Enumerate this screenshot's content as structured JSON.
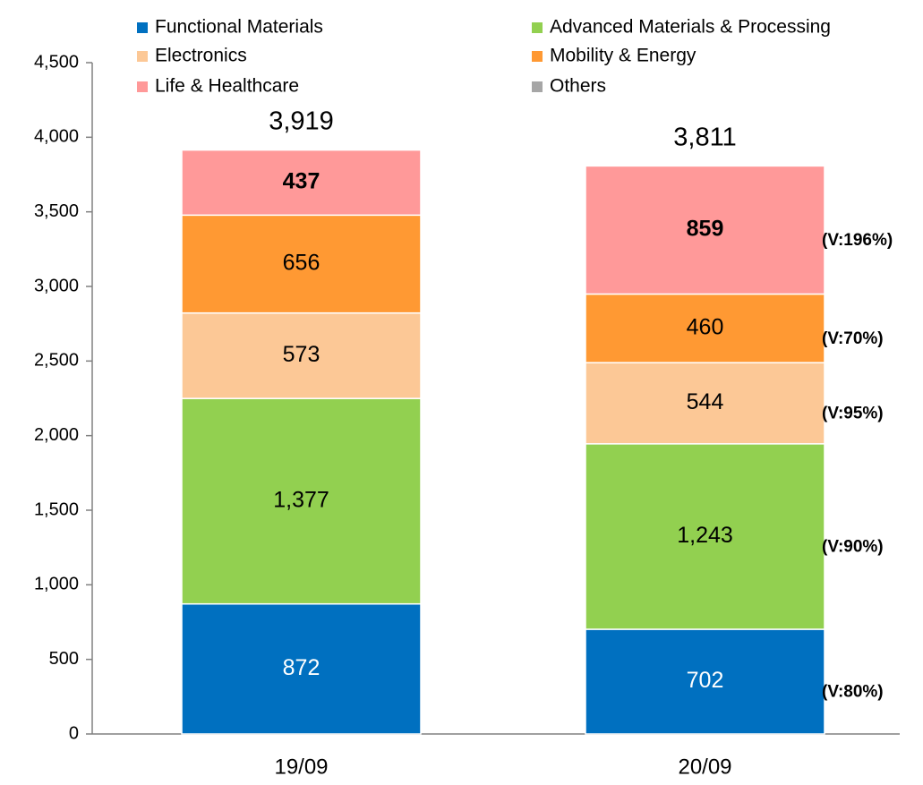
{
  "chart_data": {
    "type": "stacked_bar",
    "categories": [
      "19/09",
      "20/09"
    ],
    "series": [
      {
        "name": "Functional Materials",
        "color": "#0070c0",
        "values": [
          872,
          702
        ]
      },
      {
        "name": "Advanced Materials & Processing",
        "color": "#92d050",
        "values": [
          1377,
          1243
        ],
        "value_labels": [
          "1,377",
          "1,243"
        ]
      },
      {
        "name": "Electronics",
        "color": "#fcc896",
        "values": [
          573,
          544
        ]
      },
      {
        "name": "Mobility & Energy",
        "color": "#ff9933",
        "values": [
          656,
          460
        ]
      },
      {
        "name": "Life & Healthcare",
        "color": "#ff9999",
        "values": [
          437,
          859
        ]
      },
      {
        "name": "Others",
        "color": "#a6a6a6",
        "values": [
          4,
          3
        ]
      }
    ],
    "totals": [
      3919,
      3811
    ],
    "total_labels": [
      "3,919",
      "3,811"
    ],
    "annotations": [
      "(V:80%)",
      "(V:90%)",
      "(V:95%)",
      "(V:70%)",
      "(V:196%)"
    ],
    "ylim": [
      0,
      4500
    ],
    "yticks": [
      0,
      500,
      {
        "value": 1000,
        "label": "1,000"
      },
      {
        "value": 1500,
        "label": "1,500"
      },
      {
        "value": 2000,
        "label": "2,000"
      },
      {
        "value": 2500,
        "label": "2,500"
      },
      {
        "value": 3000,
        "label": "3,000"
      },
      {
        "value": 3500,
        "label": "3,500"
      },
      {
        "value": 4000,
        "label": "4,000"
      },
      {
        "value": 4500,
        "label": "4,500"
      }
    ],
    "grid": false
  }
}
